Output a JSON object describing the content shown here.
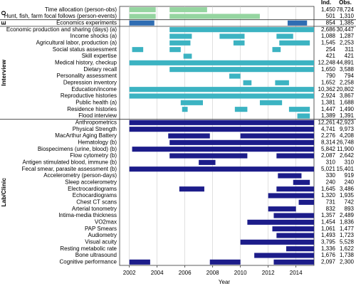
{
  "chart_data": {
    "type": "timeline",
    "xlabel": "Year",
    "columns": [
      "Ind.",
      "Obs."
    ],
    "xlim": [
      2001.3,
      2015.3
    ],
    "xticks": [
      2002,
      2004,
      2006,
      2008,
      2010,
      2012,
      2014
    ],
    "grid": true,
    "groups": [
      {
        "label": "O",
        "color": "#95d5a0",
        "rows": [
          {
            "label": "Time allocation (person-obs)",
            "ind": "1,450",
            "obs": "78,724",
            "spans": [
              [
                2002,
                2003.9
              ],
              [
                2004.9,
                2007.6
              ]
            ]
          },
          {
            "label": "Hunt, fish, farm focal follows (person-events)",
            "ind": "501",
            "obs": "1,310",
            "spans": [
              [
                2002,
                2003.9
              ],
              [
                2004.9,
                2011.4
              ]
            ]
          }
        ]
      },
      {
        "label": "E",
        "color": "#2f6db3",
        "rows": [
          {
            "label": "Economics experiments",
            "ind": "854",
            "obs": "1,385",
            "spans": [
              [
                2002,
                2003.8
              ],
              [
                2013.4,
                2014.8
              ]
            ]
          }
        ]
      },
      {
        "label": "Interview",
        "color": "#3cb3c2",
        "rows": [
          {
            "label": "Economic production and sharing (days) (a)",
            "ind": "2,686",
            "obs": "30,447",
            "spans": [
              [
                2004.9,
                2015.3
              ]
            ]
          },
          {
            "label": "Income shocks (a)",
            "ind": "1,088",
            "obs": "1,287",
            "spans": [
              [
                2004.9,
                2006.5
              ],
              [
                2008.5,
                2010.3
              ],
              [
                2012.6,
                2013.8
              ]
            ]
          },
          {
            "label": "Agricultural labor, production (a)",
            "ind": "1,545",
            "obs": "2,253",
            "spans": [
              [
                2004.9,
                2006.4
              ],
              [
                2009.5,
                2010.3
              ],
              [
                2012.8,
                2015
              ]
            ]
          },
          {
            "label": "Social status assessment",
            "ind": "254",
            "obs": "311",
            "spans": [
              [
                2002.2,
                2003
              ],
              [
                2004.9,
                2005.7
              ],
              [
                2012.3,
                2012.9
              ]
            ]
          },
          {
            "label": "Skill expertise",
            "ind": "421",
            "obs": "421",
            "spans": [
              [
                2005.9,
                2006.5
              ]
            ]
          },
          {
            "label": "Medical history, checkup",
            "ind": "12,248",
            "obs": "44,891",
            "spans": [
              [
                2002,
                2015.3
              ]
            ]
          },
          {
            "label": "Dietary recall",
            "ind": "1,650",
            "obs": "3,588",
            "spans": [
              [
                2004.9,
                2015.3
              ]
            ]
          },
          {
            "label": "Personality assessment",
            "ind": "790",
            "obs": "794",
            "spans": [
              [
                2009.2,
                2010
              ]
            ]
          },
          {
            "label": "Depression inventory",
            "ind": "1,652",
            "obs": "2,258",
            "spans": [
              [
                2010.2,
                2010.8
              ],
              [
                2012.5,
                2013.5
              ]
            ]
          },
          {
            "label": "Education/income",
            "ind": "10,362",
            "obs": "20,802",
            "spans": [
              [
                2002,
                2015.3
              ]
            ]
          },
          {
            "label": "Reproductive histories",
            "ind": "2,924",
            "obs": "3,867",
            "spans": [
              [
                2002,
                2015.3
              ]
            ]
          },
          {
            "label": "Public health (a)",
            "ind": "1,381",
            "obs": "1,688",
            "spans": [
              [
                2005.7,
                2007.3
              ],
              [
                2011.4,
                2013
              ]
            ]
          },
          {
            "label": "Residence histories",
            "ind": "1,447",
            "obs": "1,490",
            "spans": [
              [
                2005.8,
                2006.2
              ],
              [
                2009.6,
                2010.5
              ],
              [
                2013.5,
                2015
              ]
            ]
          },
          {
            "label": "Flood interview",
            "ind": "1,389",
            "obs": "1,391",
            "spans": [
              [
                2014.1,
                2015
              ]
            ]
          }
        ]
      },
      {
        "label": "Lab/Clinic",
        "color": "#1c1c8a",
        "rows": [
          {
            "label": "Anthropometrics",
            "ind": "12,261",
            "obs": "42,923",
            "spans": [
              [
                2002,
                2015.3
              ]
            ]
          },
          {
            "label": "Physical Strength",
            "ind": "4,741",
            "obs": "9,973",
            "spans": [
              [
                2002,
                2015.3
              ]
            ]
          },
          {
            "label": "MacArthur Aging Battery",
            "ind": "2,276",
            "obs": "4,208",
            "spans": [
              [
                2004.8,
                2007.8
              ],
              [
                2010,
                2015.3
              ]
            ]
          },
          {
            "label": "Hematology (b)",
            "ind": "8,314",
            "obs": "26,748",
            "spans": [
              [
                2004.9,
                2015.3
              ]
            ]
          },
          {
            "label": "Biospecimens (urine, blood) (b)",
            "ind": "5,842",
            "obs": "11,900",
            "spans": [
              [
                2002.2,
                2015.3
              ]
            ]
          },
          {
            "label": "Flow cytometry (b)",
            "ind": "2,087",
            "obs": "2,642",
            "spans": [
              [
                2004.9,
                2010.5
              ],
              [
                2012.6,
                2015.3
              ]
            ]
          },
          {
            "label": "Antigen stimulated blood, immune (b)",
            "ind": "310",
            "obs": "310",
            "spans": [
              [
                2007,
                2008.2
              ]
            ]
          },
          {
            "label": "Fecal smear, parasite assessment (b)",
            "ind": "5,021",
            "obs": "15,401",
            "spans": [
              [
                2002,
                2015.3
              ]
            ]
          },
          {
            "label": "Accelerometry (person-days)",
            "ind": "330",
            "obs": "919",
            "spans": [
              [
                2012.7,
                2014.4
              ]
            ]
          },
          {
            "label": "Sleep accelerometry",
            "ind": "240",
            "obs": "240",
            "spans": [
              [
                2013.8,
                2015
              ]
            ]
          },
          {
            "label": "Electrocardiograms",
            "ind": "1,645",
            "obs": "3,486",
            "spans": [
              [
                2005.6,
                2007.4
              ],
              [
                2012.6,
                2015.3
              ]
            ]
          },
          {
            "label": "Echocardiograms",
            "ind": "1,320",
            "obs": "1,935",
            "spans": [
              [
                2012,
                2015.3
              ]
            ]
          },
          {
            "label": "Chest CT scans",
            "ind": "731",
            "obs": "742",
            "spans": [
              [
                2014.2,
                2015.3
              ]
            ]
          },
          {
            "label": "Arterial tonometry",
            "ind": "832",
            "obs": "893",
            "spans": [
              [
                2012,
                2014
              ]
            ]
          },
          {
            "label": "Intima-media thickness",
            "ind": "1,357",
            "obs": "2,489",
            "spans": [
              [
                2012.4,
                2015.3
              ]
            ]
          },
          {
            "label": "VO2max",
            "ind": "1,454",
            "obs": "1,836",
            "spans": [
              [
                2010.5,
                2015.3
              ]
            ]
          },
          {
            "label": "PAP Smears",
            "ind": "1,061",
            "obs": "1,477",
            "spans": [
              [
                2012.3,
                2015.3
              ]
            ]
          },
          {
            "label": "Audiometry",
            "ind": "1,493",
            "obs": "1,723",
            "spans": [
              [
                2012.6,
                2015.3
              ]
            ]
          },
          {
            "label": "Visual acuity",
            "ind": "3,795",
            "obs": "5,528",
            "spans": [
              [
                2010,
                2015.3
              ]
            ]
          },
          {
            "label": "Resting metabolic rate",
            "ind": "1,336",
            "obs": "1,622",
            "spans": [
              [
                2013.3,
                2015.3
              ]
            ]
          },
          {
            "label": "Bone ultrasound",
            "ind": "1,676",
            "obs": "1,738",
            "spans": [
              [
                2011,
                2015.3
              ]
            ]
          },
          {
            "label": "Cognitive performance",
            "ind": "2,097",
            "obs": "2,300",
            "spans": [
              [
                2002,
                2003.5
              ],
              [
                2007.8,
                2010
              ],
              [
                2012.4,
                2015.3
              ]
            ]
          }
        ]
      }
    ]
  }
}
